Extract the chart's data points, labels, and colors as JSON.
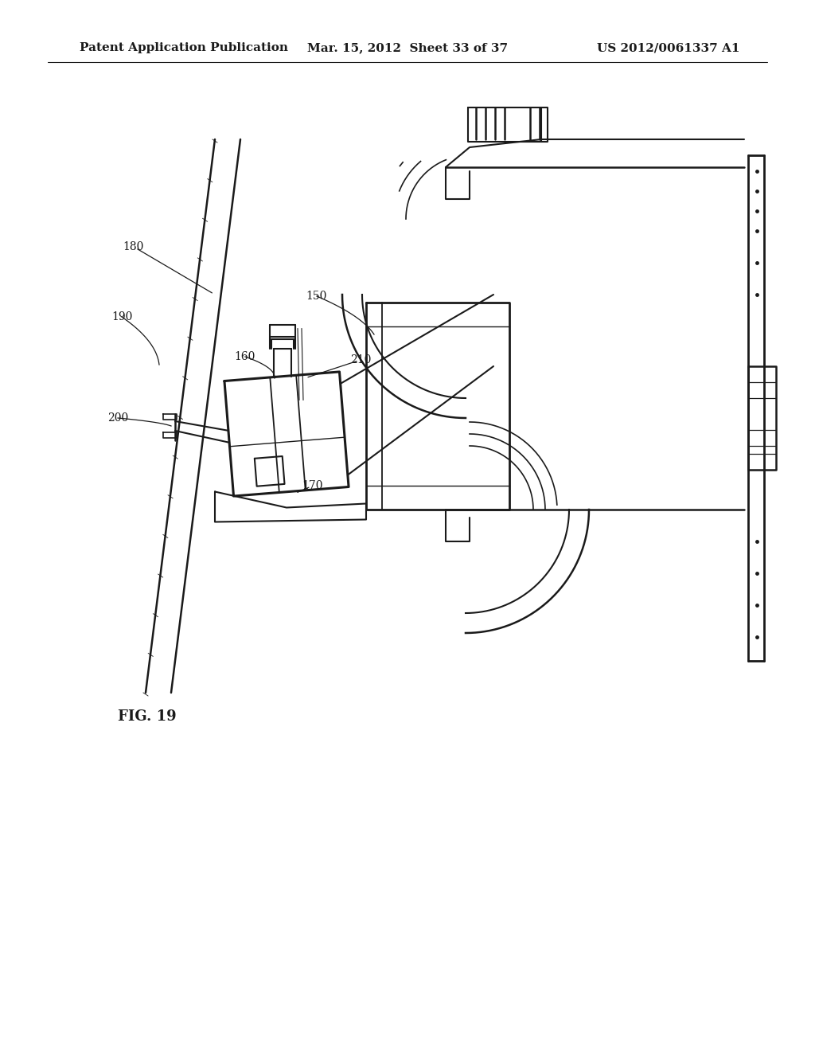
{
  "header_left": "Patent Application Publication",
  "header_mid": "Mar. 15, 2012  Sheet 33 of 37",
  "header_right": "US 2012/0061337 A1",
  "fig_label": "FIG. 19",
  "bg_color": "#ffffff",
  "lc": "#1a1a1a",
  "title_fontsize": 11,
  "label_fontsize": 10
}
